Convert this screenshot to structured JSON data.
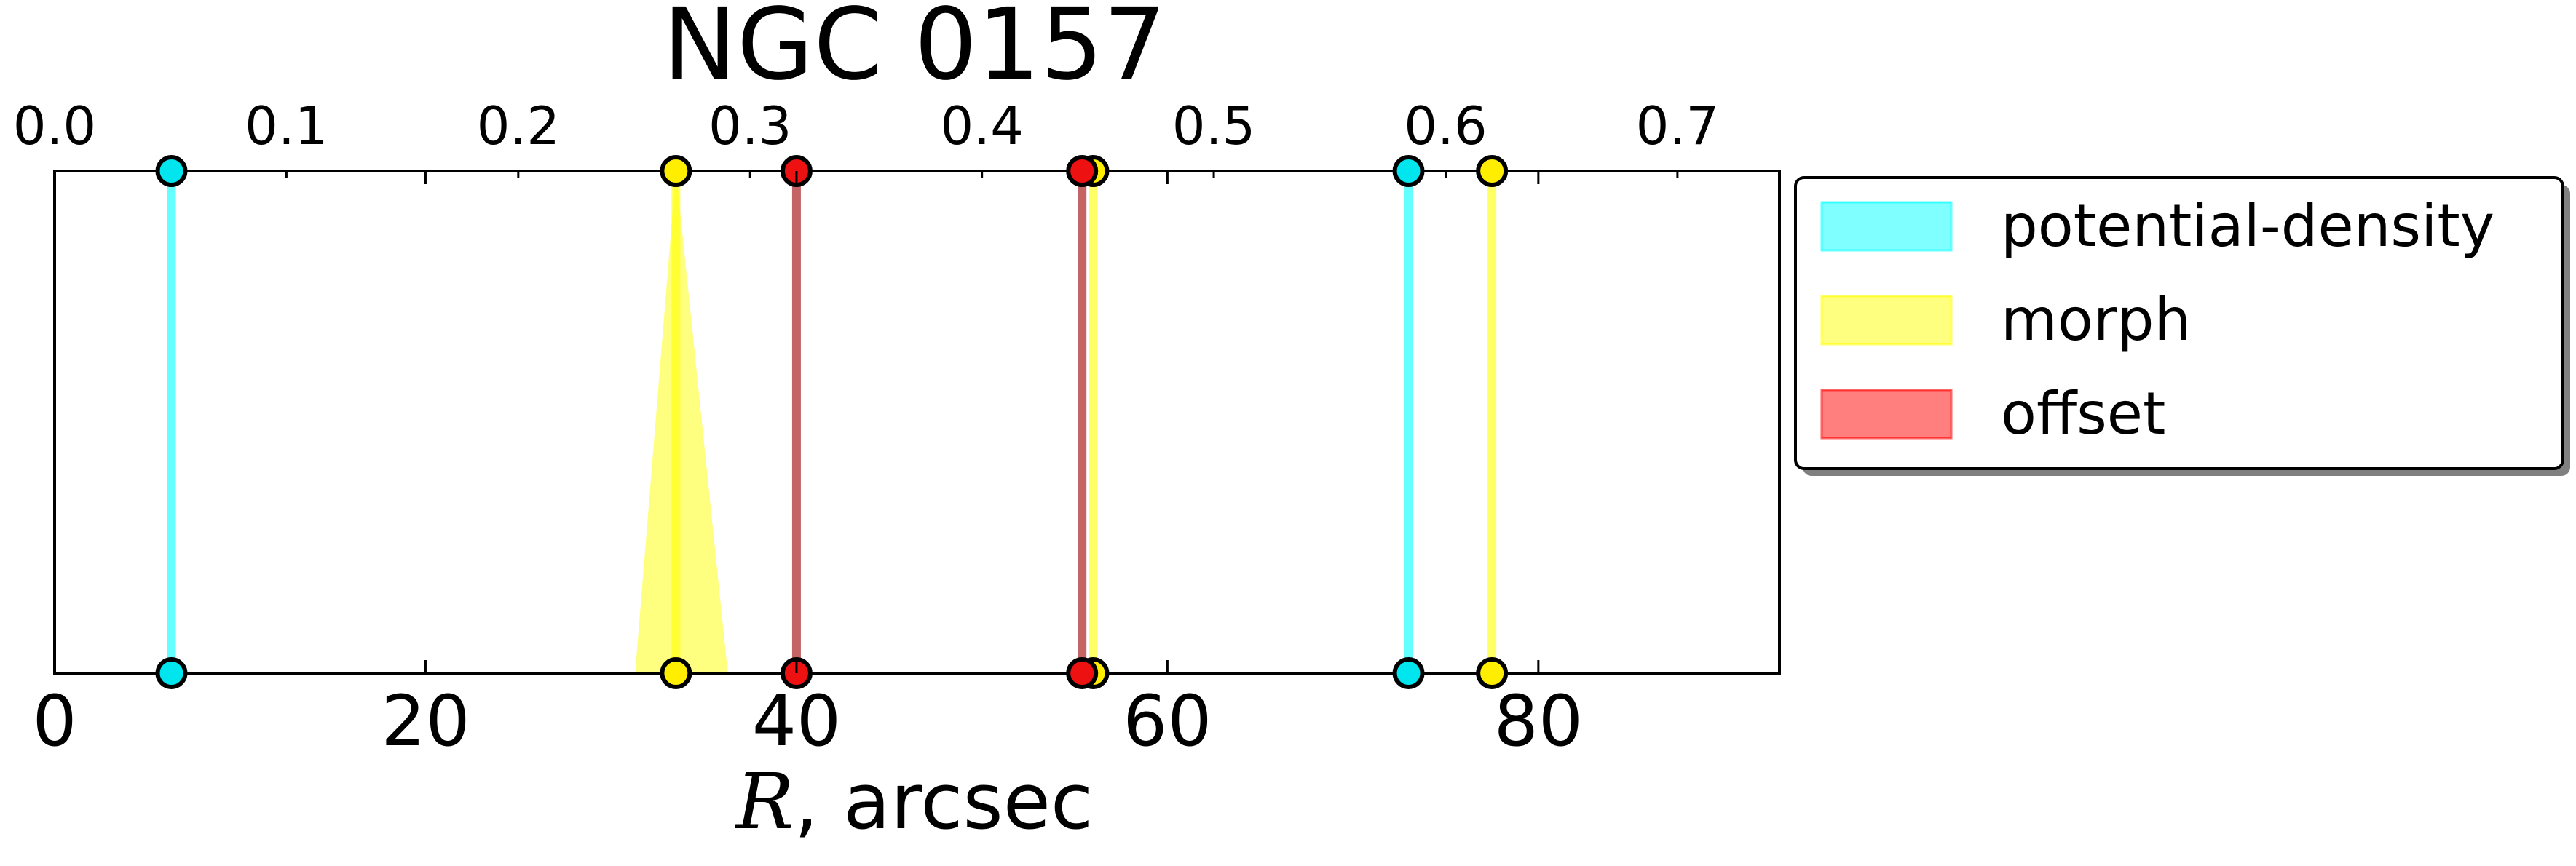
{
  "chart_data": {
    "type": "line",
    "title": "NGC 0157",
    "xlabel_italic": "R",
    "xlabel_rest": ", arcsec",
    "xlim": [
      0,
      93
    ],
    "top_axis_ratio": 0.008,
    "bottom_ticks": [
      0,
      20,
      40,
      60,
      80
    ],
    "bottom_tick_labels": [
      "0",
      "20",
      "40",
      "60",
      "80"
    ],
    "top_ticks": [
      0.0,
      0.1,
      0.2,
      0.3,
      0.4,
      0.5,
      0.6,
      0.7
    ],
    "top_tick_labels": [
      "0.0",
      "0.1",
      "0.2",
      "0.3",
      "0.4",
      "0.5",
      "0.6",
      "0.7"
    ],
    "grid": false,
    "legend_position": "outside-right-top",
    "series": [
      {
        "name": "potential-density",
        "color": "#00ffff",
        "marker_color": "#00e5ee",
        "lines": [
          6.3,
          73.0
        ],
        "bands": []
      },
      {
        "name": "morph",
        "color": "#ffff00",
        "marker_color": "#ffee00",
        "lines": [
          33.5,
          56.0,
          77.5
        ],
        "bands": [
          {
            "center": 33.5,
            "bottom_left": 31.3,
            "bottom_right": 36.3
          }
        ]
      },
      {
        "name": "offset",
        "color": "#ff0000",
        "marker_color": "#ee1111",
        "lines": [
          40.0,
          55.4
        ],
        "bands": []
      }
    ]
  }
}
